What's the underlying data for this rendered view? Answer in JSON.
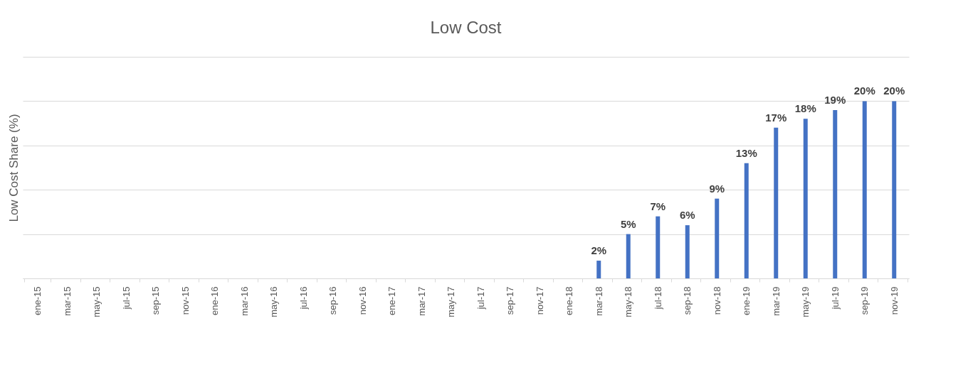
{
  "chart_data": {
    "type": "bar",
    "title": "Low Cost",
    "ylabel": "Low Cost Share (%)",
    "categories": [
      "ene-15",
      "mar-15",
      "may-15",
      "jul-15",
      "sep-15",
      "nov-15",
      "ene-16",
      "mar-16",
      "may-16",
      "jul-16",
      "sep-16",
      "nov-16",
      "ene-17",
      "mar-17",
      "may-17",
      "jul-17",
      "sep-17",
      "nov-17",
      "ene-18",
      "mar-18",
      "may-18",
      "jul-18",
      "sep-18",
      "nov-18",
      "ene-19",
      "mar-19",
      "may-19",
      "jul-19",
      "sep-19",
      "nov-19"
    ],
    "values": [
      null,
      null,
      null,
      null,
      null,
      null,
      null,
      null,
      null,
      null,
      null,
      null,
      null,
      null,
      null,
      null,
      null,
      null,
      null,
      2,
      5,
      7,
      6,
      9,
      13,
      17,
      18,
      19,
      20,
      20
    ],
    "value_labels": [
      null,
      null,
      null,
      null,
      null,
      null,
      null,
      null,
      null,
      null,
      null,
      null,
      null,
      null,
      null,
      null,
      null,
      null,
      null,
      "2%",
      "5%",
      "7%",
      "6%",
      "9%",
      "13%",
      "17%",
      "18%",
      "19%",
      "20%",
      "20%"
    ],
    "color": "#4472c4",
    "ylim": [
      0,
      25
    ],
    "yticks": [
      {
        "value": 0,
        "label": null
      },
      {
        "value": 5,
        "label": null
      },
      {
        "value": 10,
        "label": null
      },
      {
        "value": 15,
        "label": null
      },
      {
        "value": 20,
        "label": null
      },
      {
        "value": 25,
        "label": null
      }
    ],
    "grid": "y",
    "tick_labels": "x"
  }
}
